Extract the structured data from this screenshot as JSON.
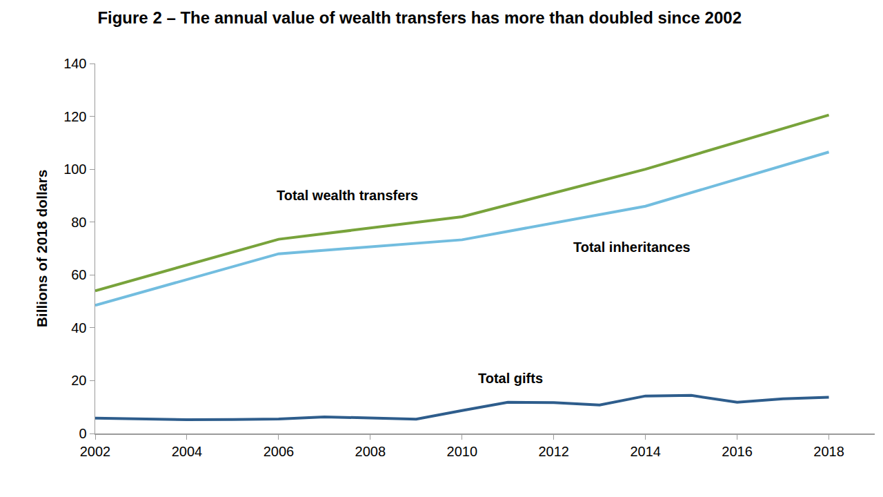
{
  "chart_data": {
    "type": "line",
    "title": "Figure 2 – The annual value of wealth transfers has more than doubled since 2002",
    "y_label": "Billions of 2018 dollars",
    "xlim": [
      2002,
      2019
    ],
    "xticks": [
      2002,
      2004,
      2006,
      2008,
      2010,
      2012,
      2014,
      2016,
      2018
    ],
    "ylim": [
      0,
      140
    ],
    "yticks": [
      0,
      20,
      40,
      60,
      80,
      100,
      120,
      140
    ],
    "grid": false,
    "series": [
      {
        "name": "Total wealth transfers",
        "color": "#78a33b",
        "x": [
          2002,
          2006,
          2010,
          2014,
          2018
        ],
        "values": [
          54,
          73.5,
          82,
          100,
          120.5
        ]
      },
      {
        "name": "Total inheritances",
        "color": "#72bddf",
        "x": [
          2002,
          2006,
          2010,
          2014,
          2018
        ],
        "values": [
          48.5,
          68,
          73.3,
          86,
          106.5
        ]
      },
      {
        "name": "Total gifts",
        "color": "#2e5d8c",
        "x": [
          2002,
          2003,
          2004,
          2005,
          2006,
          2007,
          2008,
          2009,
          2010,
          2011,
          2012,
          2013,
          2014,
          2015,
          2016,
          2017,
          2018
        ],
        "values": [
          5.8,
          5.5,
          5.2,
          5.3,
          5.5,
          6.3,
          5.8,
          5.4,
          8.7,
          11.8,
          11.7,
          10.8,
          14.2,
          14.4,
          11.8,
          13.1,
          13.7
        ]
      }
    ],
    "annotations": [
      {
        "text": "Total wealth transfers",
        "x": 2007.5,
        "y": 90
      },
      {
        "text": "Total inheritances",
        "x": 2013.7,
        "y": 70.5
      },
      {
        "text": "Total gifts",
        "x": 2011.05,
        "y": 20.9
      }
    ]
  }
}
